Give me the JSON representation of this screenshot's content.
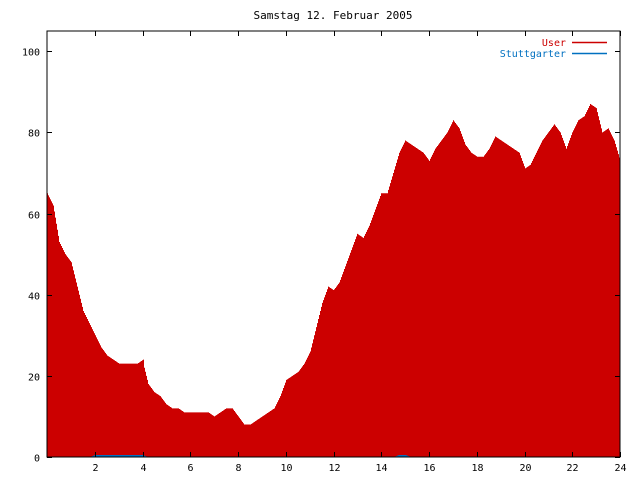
{
  "chart_data": {
    "type": "bar",
    "title": "Samstag 12. Februar 2005",
    "xlabel": "",
    "ylabel": "",
    "xlim": [
      0,
      24
    ],
    "ylim": [
      0,
      105
    ],
    "xticks": [
      2,
      4,
      6,
      8,
      10,
      12,
      14,
      16,
      18,
      20,
      22,
      24
    ],
    "yticks": [
      0,
      20,
      40,
      60,
      80,
      100
    ],
    "grid": false,
    "legend_position": "top-right",
    "series": [
      {
        "name": "User",
        "color": "#cc0000",
        "x": [
          0.0,
          0.25,
          0.5,
          0.75,
          1.0,
          1.25,
          1.5,
          1.75,
          2.0,
          2.25,
          2.5,
          2.75,
          3.0,
          3.25,
          3.5,
          3.75,
          4.0,
          4.25,
          4.5,
          4.75,
          5.0,
          5.25,
          5.5,
          5.75,
          6.0,
          6.25,
          6.5,
          6.75,
          7.0,
          7.25,
          7.5,
          7.75,
          8.0,
          8.25,
          8.5,
          8.75,
          9.0,
          9.25,
          9.5,
          9.75,
          10.0,
          10.25,
          10.5,
          10.75,
          11.0,
          11.25,
          11.5,
          11.75,
          12.0,
          12.25,
          12.5,
          12.75,
          13.0,
          13.25,
          13.5,
          13.75,
          14.0,
          14.25,
          14.5,
          14.75,
          15.0,
          15.25,
          15.5,
          15.75,
          16.0,
          16.25,
          16.5,
          16.75,
          17.0,
          17.25,
          17.5,
          17.75,
          18.0,
          18.25,
          18.5,
          18.75,
          19.0,
          19.25,
          19.5,
          19.75,
          20.0,
          20.25,
          20.5,
          20.75,
          21.0,
          21.25,
          21.5,
          21.75,
          22.0,
          22.25,
          22.5,
          22.75,
          23.0,
          23.25,
          23.5,
          23.75,
          24.0
        ],
        "values": [
          65,
          62,
          53,
          50,
          48,
          42,
          36,
          33,
          30,
          27,
          25,
          24,
          23,
          23,
          23,
          23,
          24,
          18,
          16,
          15,
          13,
          12,
          12,
          11,
          11,
          11,
          11,
          11,
          10,
          11,
          12,
          12,
          10,
          8,
          8,
          9,
          10,
          11,
          12,
          15,
          19,
          20,
          21,
          23,
          26,
          32,
          38,
          42,
          41,
          43,
          47,
          51,
          55,
          54,
          57,
          61,
          65,
          65,
          70,
          75,
          78,
          77,
          76,
          75,
          73,
          76,
          78,
          80,
          83,
          81,
          77,
          75,
          74,
          74,
          76,
          79,
          78,
          77,
          76,
          75,
          71,
          72,
          75,
          78,
          80,
          82,
          80,
          76,
          80,
          83,
          84,
          87,
          86,
          80,
          81,
          78,
          73
        ]
      },
      {
        "name": "Stuttgarter",
        "color": "#0070c0",
        "x": [
          0.0,
          0.25,
          0.5,
          0.75,
          1.0,
          1.25,
          1.5,
          1.75,
          2.0,
          2.25,
          2.5,
          2.75,
          3.0,
          3.25,
          3.5,
          3.75,
          4.0,
          4.25,
          4.5,
          4.75,
          5.0,
          5.25,
          5.5,
          5.75,
          6.0,
          6.25,
          6.5,
          6.75,
          7.0,
          7.25,
          7.5,
          7.75,
          8.0,
          8.25,
          8.5,
          8.75,
          9.0,
          9.25,
          9.5,
          9.75,
          10.0,
          10.25,
          10.5,
          10.75,
          11.0,
          11.25,
          11.5,
          11.75,
          12.0,
          12.25,
          12.5,
          12.75,
          13.0,
          13.25,
          13.5,
          13.75,
          14.0,
          14.25,
          14.5,
          14.75,
          15.0,
          15.25,
          15.5,
          15.75,
          16.0,
          16.25,
          16.5,
          16.75,
          17.0,
          17.25,
          17.5,
          17.75,
          18.0,
          18.25,
          18.5,
          18.75,
          19.0,
          19.25,
          19.5,
          19.75,
          20.0,
          20.25,
          20.5,
          20.75,
          21.0,
          21.25,
          21.5,
          21.75,
          22.0,
          22.25,
          22.5,
          22.75,
          23.0,
          23.25,
          23.5,
          23.75,
          24.0
        ],
        "values": [
          0,
          0,
          0,
          0,
          0,
          0,
          0,
          0,
          0.5,
          0.5,
          0.5,
          0.5,
          0.5,
          0.5,
          0.5,
          0.5,
          0.5,
          0,
          0,
          0,
          0,
          0,
          0,
          0,
          0,
          0,
          0,
          0,
          0,
          0,
          0,
          0,
          0,
          0,
          0,
          0,
          0,
          0,
          0,
          0,
          0,
          0,
          0,
          0,
          0,
          0,
          0,
          0,
          0,
          0,
          0,
          0,
          0,
          0,
          0,
          0,
          0,
          0,
          0,
          0.5,
          0.5,
          0,
          0,
          0,
          0,
          0,
          0,
          0,
          0,
          0,
          0,
          0,
          0,
          0,
          0,
          0,
          0,
          0,
          0,
          0,
          0,
          0,
          0,
          0,
          0,
          0,
          0,
          0,
          0,
          0,
          0,
          0,
          0,
          0,
          0,
          0,
          0
        ]
      }
    ]
  }
}
